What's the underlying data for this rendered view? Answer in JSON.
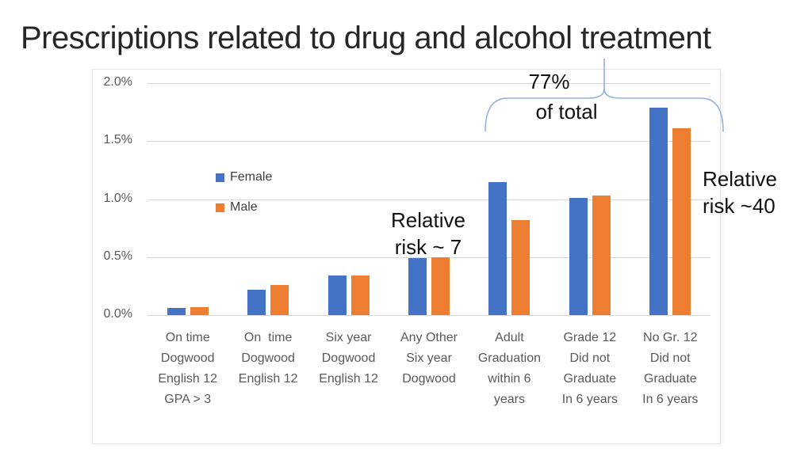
{
  "slide": {
    "title": "Prescriptions related to drug and alcohol treatment"
  },
  "annotations": {
    "pct_line1": "77%",
    "pct_line2": "of total",
    "rr7_line1": "Relative",
    "rr7_line2": "risk ~ 7",
    "rr40_line1": "Relative",
    "rr40_line2": "risk ~40",
    "brace_color": "#94b3df"
  },
  "chart_data": {
    "type": "bar",
    "title": "Prescriptions related to drug and alcohol treatment",
    "categories": [
      [
        "On time",
        "Dogwood",
        "English 12",
        "GPA > 3"
      ],
      [
        "On  time",
        "Dogwood",
        "English 12"
      ],
      [
        "Six year",
        "Dogwood",
        "English 12"
      ],
      [
        "Any Other",
        "Six year",
        "Dogwood"
      ],
      [
        "Adult",
        "Graduation",
        "within 6",
        "years"
      ],
      [
        "Grade 12",
        "Did not",
        "Graduate",
        "In 6 years"
      ],
      [
        "No Gr. 12",
        "Did not",
        "Graduate",
        "In 6 years"
      ]
    ],
    "series": [
      {
        "name": "Female",
        "color": "#4472C4",
        "values": [
          0.06,
          0.22,
          0.34,
          0.49,
          1.15,
          1.01,
          1.79
        ]
      },
      {
        "name": "Male",
        "color": "#ED7D31",
        "values": [
          0.07,
          0.26,
          0.34,
          0.5,
          0.82,
          1.03,
          1.61
        ]
      }
    ],
    "unit": "%",
    "xlabel": "",
    "ylabel": "",
    "ylim": [
      0,
      2.0
    ],
    "ytick_labels": [
      "0.0%",
      "0.5%",
      "1.0%",
      "1.5%",
      "2.0%"
    ],
    "grid": true,
    "legend_position": "inside-left",
    "axis_label_color": "#595959",
    "gridline_color": "#d9d9d9"
  }
}
